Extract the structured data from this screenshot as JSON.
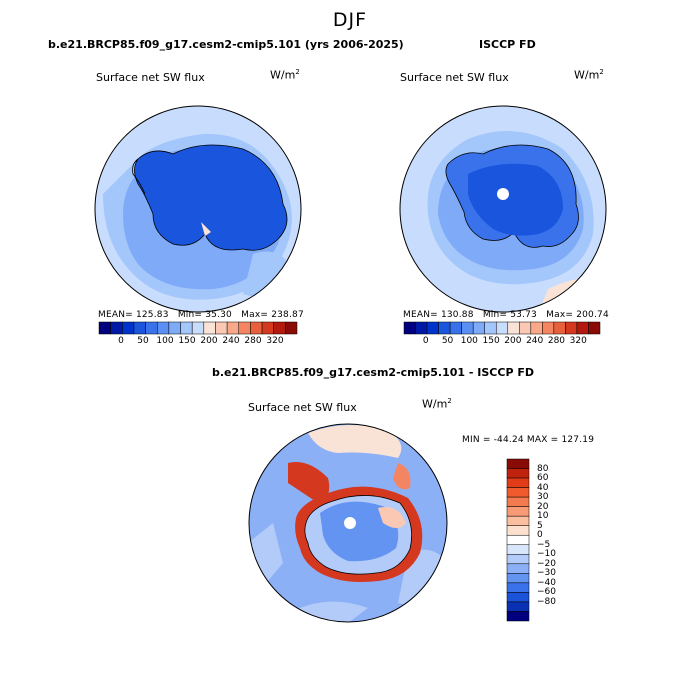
{
  "figure": {
    "title": "DJF"
  },
  "panels": [
    {
      "title": "b.e21.BRCP85.f09_g17.cesm2-cmip5.101 (yrs 2006-2025)",
      "field": "Surface net SW flux",
      "units": "W/m",
      "units_sup": "2",
      "stats": {
        "mean_label": "MEAN=",
        "mean": "125.83",
        "min_label": "Min=",
        "min": "35.30",
        "max_label": "Max=",
        "max": "238.87"
      }
    },
    {
      "title": "ISCCP FD",
      "field": "Surface net SW flux",
      "units": "W/m",
      "units_sup": "2",
      "stats": {
        "mean_label": "MEAN=",
        "mean": "130.88",
        "min_label": "Min=",
        "min": "53.73",
        "max_label": "Max=",
        "max": "200.74"
      }
    },
    {
      "title": "b.e21.BRCP85.f09_g17.cesm2-cmip5.101 - ISCCP FD",
      "field": "Surface net SW flux",
      "units": "W/m",
      "units_sup": "2",
      "stats_text": "MIN = -44.24  MAX = 127.19"
    }
  ],
  "colorbar_abs": {
    "colors": [
      "#00007f",
      "#0019a6",
      "#0033cc",
      "#1a55dd",
      "#3a72ec",
      "#5b8ff3",
      "#7eaaf7",
      "#a3c6fb",
      "#c8ddfd",
      "#f9e2d6",
      "#fbc9b3",
      "#f9a88a",
      "#f48563",
      "#e8603c",
      "#d4391f",
      "#b4190d",
      "#8a0a05"
    ],
    "tick_labels": [
      "0",
      "50",
      "100",
      "150",
      "200",
      "240",
      "280",
      "320"
    ]
  },
  "colorbar_diff": {
    "colors": [
      "#8a0a05",
      "#c0220e",
      "#e23b17",
      "#f05a2c",
      "#f47a4f",
      "#f89a75",
      "#fbbe9f",
      "#fde0cd",
      "#ffffff",
      "#d8e6fc",
      "#b2cbf9",
      "#8cb0f6",
      "#6494f2",
      "#3a72ec",
      "#1a52d9",
      "#0a30b3",
      "#00007f"
    ],
    "labels": [
      "80",
      "60",
      "40",
      "30",
      "20",
      "10",
      "5",
      "0",
      "−5",
      "−10",
      "−20",
      "−30",
      "−40",
      "−60",
      "−80"
    ]
  }
}
